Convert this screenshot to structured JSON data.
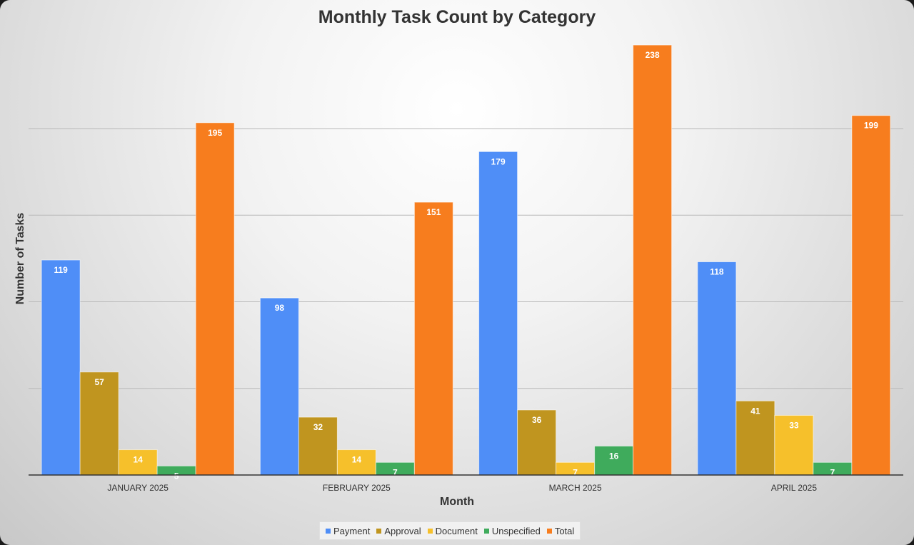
{
  "chart_data": {
    "type": "bar",
    "title": "Monthly Task Count by Category",
    "xlabel": "Month",
    "ylabel": "Number of Tasks",
    "categories": [
      "JANUARY 2025",
      "FEBRUARY 2025",
      "MARCH 2025",
      "APRIL 2025"
    ],
    "ylim": [
      0,
      240
    ],
    "grid": true,
    "legend": "bottom",
    "series": [
      {
        "name": "Payment",
        "color": "#4f8ef7",
        "values": [
          119,
          98,
          179,
          118
        ]
      },
      {
        "name": "Approval",
        "color": "#c0951f",
        "values": [
          57,
          32,
          36,
          41
        ]
      },
      {
        "name": "Document",
        "color": "#f6c02b",
        "values": [
          14,
          14,
          7,
          33
        ]
      },
      {
        "name": "Unspecified",
        "color": "#3fab5c",
        "values": [
          5,
          7,
          16,
          7
        ]
      },
      {
        "name": "Total",
        "color": "#f77d1e",
        "values": [
          195,
          151,
          238,
          199
        ]
      }
    ]
  }
}
